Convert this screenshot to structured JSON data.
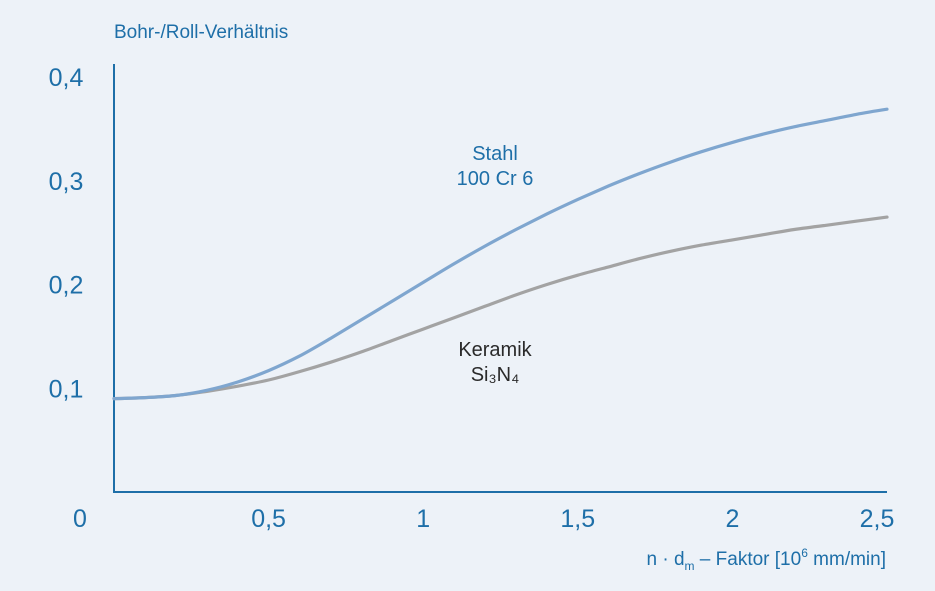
{
  "chart_data": {
    "type": "line",
    "title": "",
    "ylabel": "Bohr-/Roll-Verhältnis",
    "xlabel": {
      "prefix": "n · d",
      "sub": "m",
      "middle": " – Faktor [10",
      "sup": "6",
      "suffix": " mm/min]"
    },
    "xlim": [
      0,
      2.5
    ],
    "ylim": [
      0,
      0.4
    ],
    "origin_label": "0",
    "x_ticks": [
      {
        "value": 0.5,
        "label": "0,5"
      },
      {
        "value": 1,
        "label": "1"
      },
      {
        "value": 1.5,
        "label": "1,5"
      },
      {
        "value": 2,
        "label": "2"
      },
      {
        "value": 2.5,
        "label": "2,5"
      }
    ],
    "y_ticks": [
      {
        "value": 0.1,
        "label": "0,1"
      },
      {
        "value": 0.2,
        "label": "0,2"
      },
      {
        "value": 0.3,
        "label": "0,3"
      },
      {
        "value": 0.4,
        "label": "0,4"
      }
    ],
    "grid": false,
    "series": [
      {
        "key": "steel",
        "label_lines": [
          "Stahl",
          "100 Cr 6"
        ],
        "color": "#7fa6cf",
        "x": [
          0,
          0.1,
          0.2,
          0.3,
          0.4,
          0.5,
          0.6,
          0.7,
          0.8,
          0.9,
          1.0,
          1.1,
          1.2,
          1.3,
          1.4,
          1.5,
          1.6,
          1.7,
          1.8,
          1.9,
          2.0,
          2.1,
          2.2,
          2.3,
          2.4,
          2.5
        ],
        "y": [
          0.09,
          0.091,
          0.093,
          0.098,
          0.106,
          0.117,
          0.131,
          0.148,
          0.166,
          0.184,
          0.202,
          0.22,
          0.237,
          0.253,
          0.268,
          0.282,
          0.295,
          0.307,
          0.318,
          0.328,
          0.337,
          0.345,
          0.352,
          0.358,
          0.364,
          0.369
        ]
      },
      {
        "key": "ceramic",
        "label_lines": [
          "Keramik",
          "Si₃N₄"
        ],
        "color": "#a3a3a3",
        "x": [
          0,
          0.1,
          0.2,
          0.3,
          0.4,
          0.5,
          0.6,
          0.7,
          0.8,
          0.9,
          1.0,
          1.1,
          1.2,
          1.3,
          1.4,
          1.5,
          1.6,
          1.7,
          1.8,
          1.9,
          2.0,
          2.1,
          2.2,
          2.3,
          2.4,
          2.5
        ],
        "y": [
          0.09,
          0.091,
          0.093,
          0.097,
          0.102,
          0.108,
          0.116,
          0.125,
          0.135,
          0.146,
          0.157,
          0.168,
          0.179,
          0.19,
          0.2,
          0.209,
          0.217,
          0.225,
          0.232,
          0.238,
          0.243,
          0.248,
          0.253,
          0.257,
          0.261,
          0.265
        ]
      }
    ]
  },
  "colors": {
    "background": "#edf2f8",
    "axis": "#1e6fa8",
    "text_accent": "#1e6fa8",
    "text_dark": "#2a2a2a"
  }
}
